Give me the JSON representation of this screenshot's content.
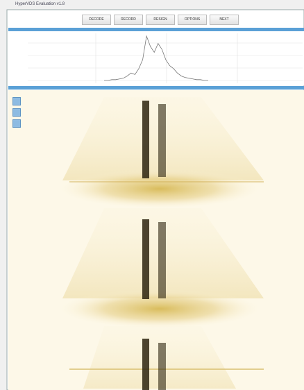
{
  "window": {
    "title": "HyperVDS Evaluation v1.8"
  },
  "toolbar": {
    "buttons": [
      "DECODE",
      "RECORD",
      "DESIGN",
      "OPTIONS",
      "NEXT"
    ]
  },
  "spectrum": {
    "values": [
      2,
      2,
      3,
      3,
      4,
      5,
      8,
      12,
      10,
      18,
      30,
      62,
      48,
      40,
      52,
      44,
      30,
      22,
      18,
      12,
      8,
      6,
      5,
      4,
      3,
      3,
      2,
      2
    ]
  }
}
